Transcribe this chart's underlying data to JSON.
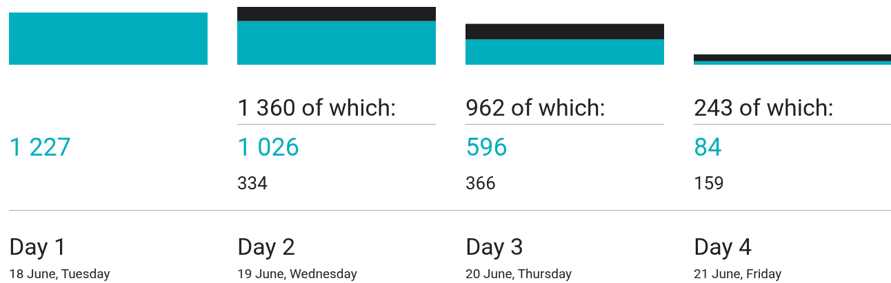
{
  "chart_data": {
    "type": "bar",
    "stacked": true,
    "categories": [
      "Day 1",
      "Day 2",
      "Day 3",
      "Day 4"
    ],
    "series": [
      {
        "color": "#00aebd",
        "values": [
          1227,
          1026,
          596,
          84
        ],
        "value_labels": [
          "1 227",
          "1 026",
          "596",
          "84"
        ]
      },
      {
        "color": "#1e1d21",
        "values": [
          null,
          334,
          366,
          159
        ],
        "value_labels": [
          null,
          "334",
          "366",
          "159"
        ]
      }
    ],
    "totals": [
      null,
      "1 360 of which:",
      "962 of which:",
      "243 of which:"
    ],
    "annotations": [
      "18 June, Tuesday",
      "19 June, Wednesday",
      "20 June, Thursday",
      "21 June, Friday"
    ]
  }
}
